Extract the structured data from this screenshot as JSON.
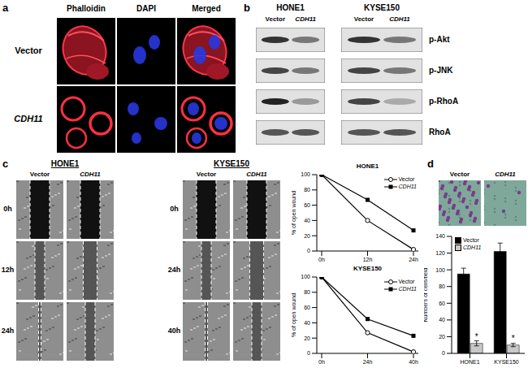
{
  "panels": {
    "a": {
      "letter": "a",
      "columns": [
        "Phalloidin",
        "DAPI",
        "Merged"
      ],
      "rows": [
        "Vector",
        "CDH11"
      ]
    },
    "b": {
      "letter": "b",
      "cell_lines": [
        "HONE1",
        "KYSE150"
      ],
      "lanes": [
        "Vector",
        "CDH11"
      ],
      "bands": [
        "p-Akt",
        "p-JNK",
        "p-RhoA",
        "RhoA"
      ]
    },
    "c": {
      "letter": "c",
      "cell_lines": [
        {
          "name": "HONE1",
          "times": [
            "0h",
            "12h",
            "24h"
          ]
        },
        {
          "name": "KYSE150",
          "times": [
            "0h",
            "24h",
            "40h"
          ]
        }
      ],
      "lanes": [
        "Vector",
        "CDH11"
      ]
    },
    "d": {
      "letter": "d",
      "images": [
        "Vector",
        "CDH11"
      ]
    }
  },
  "chart_data": [
    {
      "type": "line",
      "title": "HONE1",
      "y_label": "% of open wound",
      "categories": [
        "0h",
        "12h",
        "24h"
      ],
      "series": [
        {
          "name": "Vector",
          "color": "#000000",
          "marker": "open_circle",
          "values": [
            100,
            40,
            2
          ]
        },
        {
          "name": "CDH11",
          "color": "#000000",
          "marker": "square",
          "values": [
            100,
            67,
            27
          ]
        }
      ],
      "ylim": [
        0,
        100
      ],
      "yticks": [
        0,
        20,
        40,
        60,
        80,
        100
      ],
      "legend": "upper right"
    },
    {
      "type": "line",
      "title": "KYSE150",
      "y_label": "% of open wound",
      "categories": [
        "0h",
        "24h",
        "40h"
      ],
      "series": [
        {
          "name": "Vector",
          "color": "#000000",
          "marker": "open_circle",
          "values": [
            100,
            27,
            2
          ]
        },
        {
          "name": "CDH11",
          "color": "#000000",
          "marker": "square",
          "values": [
            100,
            45,
            23
          ]
        }
      ],
      "ylim": [
        0,
        100
      ],
      "yticks": [
        0,
        20,
        40,
        60,
        80,
        100
      ],
      "legend": "upper right"
    },
    {
      "type": "bar",
      "y_label": "Numbers of cells/field",
      "categories": [
        "HONE1",
        "KYSE150"
      ],
      "series": [
        {
          "name": "Vector",
          "color": "#000000",
          "values": [
            95,
            122
          ],
          "errors": [
            7,
            10
          ]
        },
        {
          "name": "CDH11",
          "color": "#c8c8c8",
          "values": [
            12,
            10
          ],
          "errors": [
            3,
            2
          ],
          "annotations": [
            "*",
            "*"
          ]
        }
      ],
      "ylim": [
        0,
        140
      ],
      "yticks": [
        0,
        20,
        40,
        60,
        80,
        100,
        120,
        140
      ],
      "legend": "upper left"
    }
  ]
}
